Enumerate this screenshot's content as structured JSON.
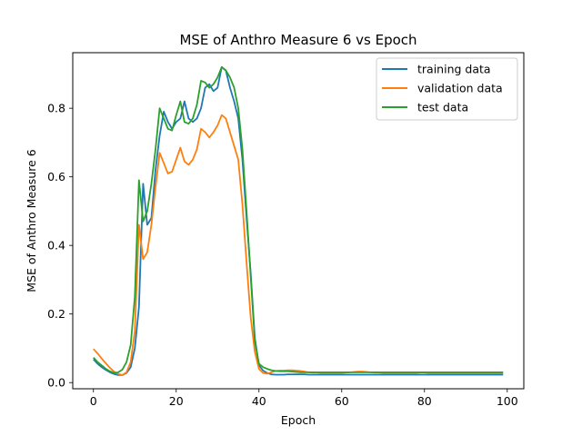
{
  "chart_data": {
    "type": "line",
    "title": "MSE of Anthro Measure 6 vs Epoch",
    "xlabel": "Epoch",
    "ylabel": "MSE of Anthro Measure 6",
    "xlim": [
      -5,
      104
    ],
    "ylim": [
      -0.018,
      0.962
    ],
    "xticks": [
      0,
      20,
      40,
      60,
      80,
      100
    ],
    "yticks": [
      0.0,
      0.2,
      0.4,
      0.6,
      0.8
    ],
    "ytick_labels": [
      "0.0",
      "0.2",
      "0.4",
      "0.6",
      "0.8"
    ],
    "legend_position": "top-right",
    "grid": false,
    "series": [
      {
        "name": "training data",
        "color": "#1f77b4",
        "x": [
          0,
          1,
          2,
          3,
          4,
          5,
          6,
          7,
          8,
          9,
          10,
          11,
          12,
          13,
          14,
          15,
          16,
          17,
          18,
          19,
          20,
          21,
          22,
          23,
          24,
          25,
          26,
          27,
          28,
          29,
          30,
          31,
          32,
          33,
          34,
          35,
          36,
          37,
          38,
          39,
          40,
          41,
          42,
          43,
          44,
          45,
          46,
          47,
          48,
          49,
          50,
          51,
          52,
          53,
          54,
          55,
          56,
          57,
          58,
          59,
          60,
          61,
          62,
          63,
          64,
          65,
          66,
          67,
          68,
          69,
          70,
          71,
          72,
          73,
          74,
          75,
          76,
          77,
          78,
          79,
          80,
          81,
          82,
          83,
          84,
          85,
          86,
          87,
          88,
          89,
          90,
          91,
          92,
          93,
          94,
          95,
          96,
          97,
          98,
          99
        ],
        "y": [
          0.068,
          0.055,
          0.045,
          0.037,
          0.03,
          0.025,
          0.022,
          0.022,
          0.028,
          0.045,
          0.1,
          0.22,
          0.58,
          0.46,
          0.48,
          0.62,
          0.72,
          0.79,
          0.76,
          0.74,
          0.76,
          0.77,
          0.82,
          0.77,
          0.76,
          0.77,
          0.8,
          0.86,
          0.87,
          0.85,
          0.86,
          0.92,
          0.91,
          0.86,
          0.82,
          0.77,
          0.65,
          0.48,
          0.32,
          0.13,
          0.05,
          0.035,
          0.028,
          0.024,
          0.023,
          0.023,
          0.023,
          0.024,
          0.024,
          0.024,
          0.024,
          0.024,
          0.023,
          0.023,
          0.023,
          0.023,
          0.023,
          0.023,
          0.023,
          0.023,
          0.023,
          0.023,
          0.023,
          0.023,
          0.023,
          0.023,
          0.023,
          0.023,
          0.023,
          0.023,
          0.023,
          0.023,
          0.023,
          0.023,
          0.023,
          0.023,
          0.023,
          0.023,
          0.023,
          0.023,
          0.023,
          0.023,
          0.023,
          0.023,
          0.023,
          0.023,
          0.023,
          0.023,
          0.023,
          0.023,
          0.023,
          0.023,
          0.023,
          0.023,
          0.023,
          0.023,
          0.023,
          0.023,
          0.023,
          0.023
        ]
      },
      {
        "name": "validation data",
        "color": "#ff7f0e",
        "x": [
          0,
          1,
          2,
          3,
          4,
          5,
          6,
          7,
          8,
          9,
          10,
          11,
          12,
          13,
          14,
          15,
          16,
          17,
          18,
          19,
          20,
          21,
          22,
          23,
          24,
          25,
          26,
          27,
          28,
          29,
          30,
          31,
          32,
          33,
          34,
          35,
          36,
          37,
          38,
          39,
          40,
          41,
          42,
          43,
          44,
          45,
          46,
          47,
          48,
          49,
          50,
          51,
          52,
          53,
          54,
          55,
          56,
          57,
          58,
          59,
          60,
          61,
          62,
          63,
          64,
          65,
          66,
          67,
          68,
          69,
          70,
          71,
          72,
          73,
          74,
          75,
          76,
          77,
          78,
          79,
          80,
          81,
          82,
          83,
          84,
          85,
          86,
          87,
          88,
          89,
          90,
          91,
          92,
          93,
          94,
          95,
          96,
          97,
          98,
          99
        ],
        "y": [
          0.098,
          0.085,
          0.07,
          0.056,
          0.043,
          0.032,
          0.025,
          0.022,
          0.03,
          0.06,
          0.15,
          0.46,
          0.36,
          0.38,
          0.46,
          0.57,
          0.67,
          0.64,
          0.61,
          0.615,
          0.65,
          0.685,
          0.645,
          0.635,
          0.65,
          0.68,
          0.74,
          0.73,
          0.715,
          0.73,
          0.75,
          0.78,
          0.77,
          0.73,
          0.69,
          0.65,
          0.52,
          0.35,
          0.19,
          0.09,
          0.04,
          0.028,
          0.026,
          0.03,
          0.034,
          0.035,
          0.035,
          0.036,
          0.036,
          0.035,
          0.034,
          0.032,
          0.03,
          0.029,
          0.029,
          0.028,
          0.028,
          0.028,
          0.028,
          0.028,
          0.028,
          0.029,
          0.03,
          0.031,
          0.032,
          0.032,
          0.031,
          0.03,
          0.029,
          0.029,
          0.028,
          0.028,
          0.028,
          0.028,
          0.028,
          0.028,
          0.028,
          0.028,
          0.028,
          0.029,
          0.029,
          0.028,
          0.028,
          0.028,
          0.028,
          0.028,
          0.028,
          0.028,
          0.028,
          0.028,
          0.028,
          0.028,
          0.028,
          0.028,
          0.028,
          0.028,
          0.028,
          0.028,
          0.028,
          0.028
        ]
      },
      {
        "name": "test data",
        "color": "#2ca02c",
        "x": [
          0,
          1,
          2,
          3,
          4,
          5,
          6,
          7,
          8,
          9,
          10,
          11,
          12,
          13,
          14,
          15,
          16,
          17,
          18,
          19,
          20,
          21,
          22,
          23,
          24,
          25,
          26,
          27,
          28,
          29,
          30,
          31,
          32,
          33,
          34,
          35,
          36,
          37,
          38,
          39,
          40,
          41,
          42,
          43,
          44,
          45,
          46,
          47,
          48,
          49,
          50,
          51,
          52,
          53,
          54,
          55,
          56,
          57,
          58,
          59,
          60,
          61,
          62,
          63,
          64,
          65,
          66,
          67,
          68,
          69,
          70,
          71,
          72,
          73,
          74,
          75,
          76,
          77,
          78,
          79,
          80,
          81,
          82,
          83,
          84,
          85,
          86,
          87,
          88,
          89,
          90,
          91,
          92,
          93,
          94,
          95,
          96,
          97,
          98,
          99
        ],
        "y": [
          0.073,
          0.06,
          0.05,
          0.04,
          0.033,
          0.028,
          0.03,
          0.038,
          0.06,
          0.11,
          0.25,
          0.59,
          0.47,
          0.5,
          0.58,
          0.68,
          0.8,
          0.77,
          0.74,
          0.735,
          0.78,
          0.82,
          0.76,
          0.755,
          0.77,
          0.81,
          0.88,
          0.875,
          0.86,
          0.87,
          0.89,
          0.92,
          0.91,
          0.89,
          0.86,
          0.8,
          0.68,
          0.5,
          0.31,
          0.12,
          0.055,
          0.045,
          0.04,
          0.036,
          0.034,
          0.033,
          0.033,
          0.033,
          0.032,
          0.031,
          0.03,
          0.03,
          0.03,
          0.03,
          0.03,
          0.03,
          0.03,
          0.03,
          0.03,
          0.03,
          0.03,
          0.03,
          0.03,
          0.03,
          0.03,
          0.03,
          0.03,
          0.03,
          0.03,
          0.03,
          0.03,
          0.03,
          0.03,
          0.03,
          0.03,
          0.03,
          0.03,
          0.03,
          0.03,
          0.03,
          0.03,
          0.03,
          0.03,
          0.03,
          0.03,
          0.03,
          0.03,
          0.03,
          0.03,
          0.03,
          0.03,
          0.03,
          0.03,
          0.03,
          0.03,
          0.03,
          0.03,
          0.03,
          0.03,
          0.03
        ]
      }
    ]
  }
}
